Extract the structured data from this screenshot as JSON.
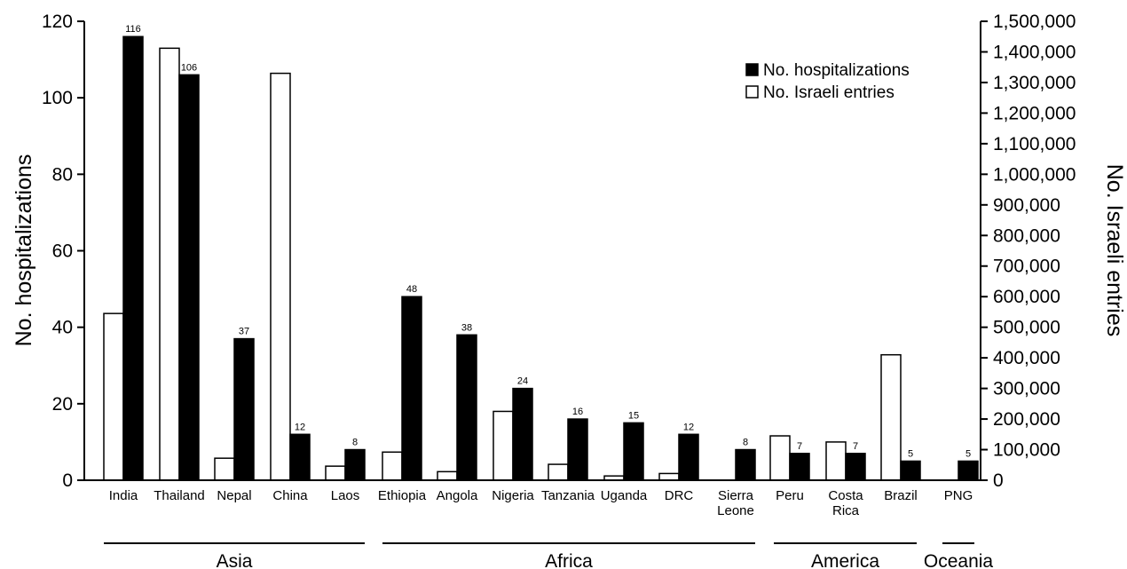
{
  "chart_data": {
    "type": "bar",
    "categories": [
      "India",
      "Thailand",
      "Nepal",
      "China",
      "Laos",
      "Ethiopia",
      "Angola",
      "Nigeria",
      "Tanzania",
      "Uganda",
      "DRC",
      "Sierra Leone",
      "Peru",
      "Costa Rica",
      "Brazil",
      "PNG"
    ],
    "category_lines": [
      [
        "India"
      ],
      [
        "Thailand"
      ],
      [
        "Nepal"
      ],
      [
        "China"
      ],
      [
        "Laos"
      ],
      [
        "Ethiopia"
      ],
      [
        "Angola"
      ],
      [
        "Nigeria"
      ],
      [
        "Tanzania"
      ],
      [
        "Uganda"
      ],
      [
        "DRC"
      ],
      [
        "Sierra",
        "Leone"
      ],
      [
        "Peru"
      ],
      [
        "Costa",
        "Rica"
      ],
      [
        "Brazil"
      ],
      [
        "PNG"
      ]
    ],
    "series": [
      {
        "name": "No. Israeli entries",
        "axis": "right",
        "fill": "#ffffff",
        "values": [
          545000,
          1412000,
          72000,
          1330000,
          46000,
          92000,
          28000,
          225000,
          52000,
          14000,
          22000,
          0,
          145000,
          125000,
          410000,
          0
        ]
      },
      {
        "name": "No. hospitalizations",
        "axis": "left",
        "fill": "#000000",
        "values": [
          116,
          106,
          37,
          12,
          8,
          48,
          38,
          24,
          16,
          15,
          12,
          8,
          7,
          7,
          5,
          5
        ],
        "data_labels": [
          "116",
          "106",
          "37",
          "12",
          "8",
          "48",
          "38",
          "24",
          "16",
          "15",
          "12",
          "8",
          "7",
          "7",
          "5",
          "5"
        ]
      }
    ],
    "ylabel": "No. hospitalizations",
    "y2label": "No. Israeli entries",
    "ylim": [
      0,
      120
    ],
    "y2lim": [
      0,
      1500000
    ],
    "yticks": [
      "0",
      "20",
      "40",
      "60",
      "80",
      "100",
      "120"
    ],
    "y2ticks": [
      "0",
      "100,000",
      "200,000",
      "300,000",
      "400,000",
      "500,000",
      "600,000",
      "700,000",
      "800,000",
      "900,000",
      "1,000,000",
      "1,100,000",
      "1,200,000",
      "1,300,000",
      "1,400,000",
      "1,500,000"
    ],
    "regions": [
      {
        "name": "Asia",
        "from": 0,
        "to": 4
      },
      {
        "name": "Africa",
        "from": 5,
        "to": 11
      },
      {
        "name": "America",
        "from": 12,
        "to": 14
      },
      {
        "name": "Oceania",
        "from": 15,
        "to": 15
      }
    ],
    "legend": {
      "position": "top-right",
      "entries": [
        {
          "label": "No. hospitalizations",
          "fill": "#000000"
        },
        {
          "label": "No. Israeli entries",
          "fill": "#ffffff"
        }
      ]
    },
    "grid": false
  }
}
